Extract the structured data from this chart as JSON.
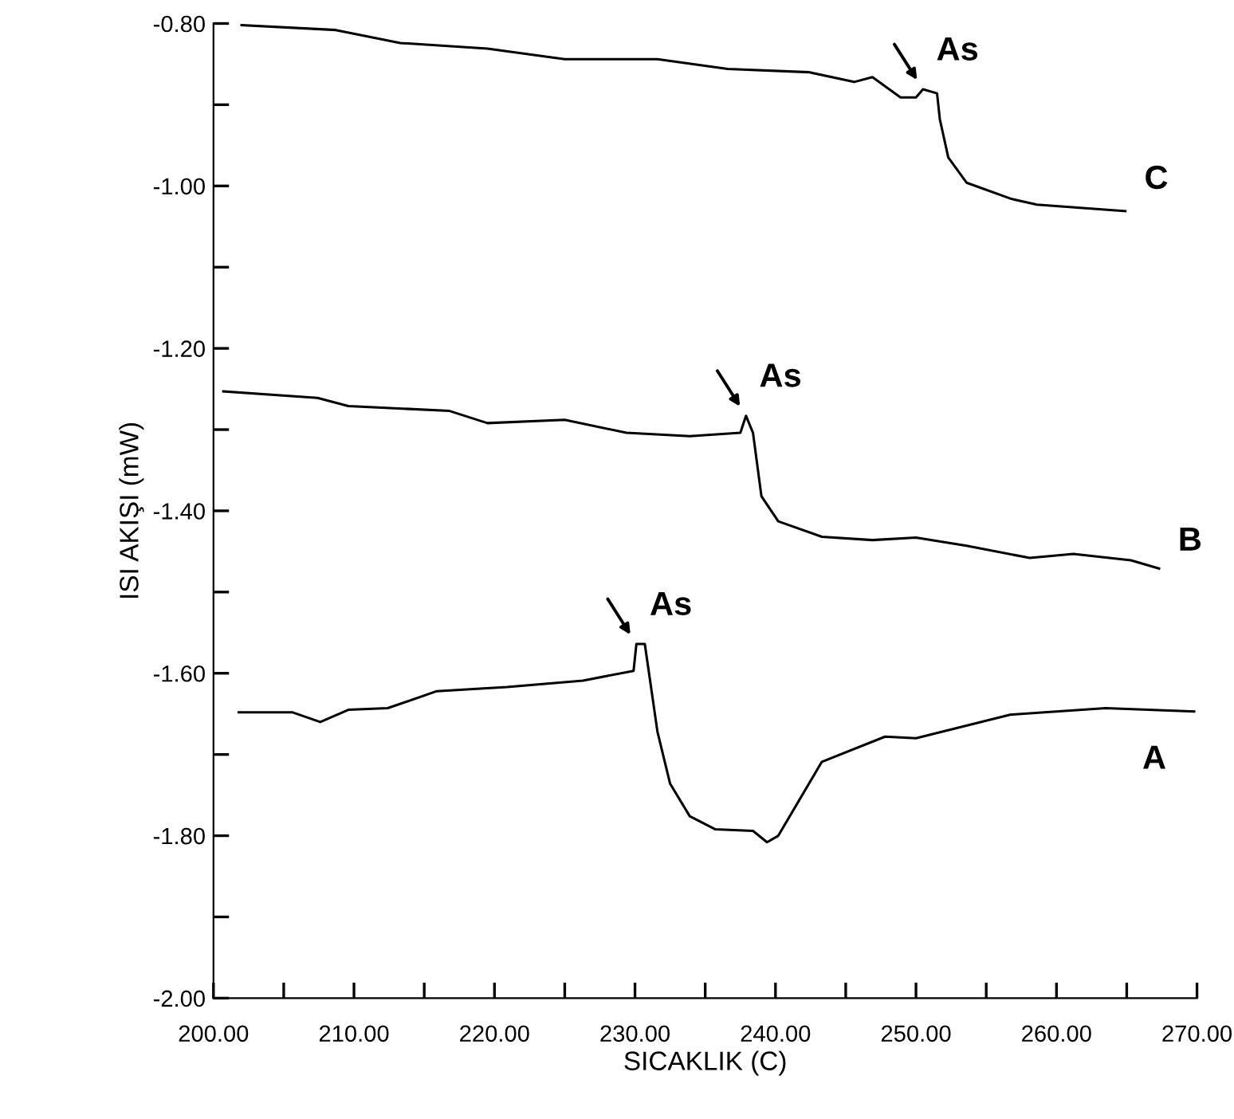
{
  "chart_data": {
    "type": "line",
    "xlabel": "SICAKLIK (C)",
    "ylabel": "ISI AKIŞI (mW)",
    "series": [
      {
        "name": "C",
        "color": "#000000",
        "x": [
          202,
          208.7,
          213.3,
          219.5,
          225,
          231.6,
          236.6,
          242.4,
          245.6,
          246.9,
          248.9,
          250,
          250.5,
          251.5,
          251.7,
          252.3,
          253.6,
          256.8,
          258.6,
          264.9
        ],
        "values": [
          -0.802,
          -0.808,
          -0.824,
          -0.831,
          -0.844,
          -0.844,
          -0.856,
          -0.86,
          -0.872,
          -0.866,
          -0.891,
          -0.891,
          -0.881,
          -0.886,
          -0.918,
          -0.965,
          -0.996,
          -1.016,
          -1.023,
          -1.031
        ]
      },
      {
        "name": "B",
        "color": "#000000",
        "x": [
          200.7,
          207.4,
          209.6,
          216.8,
          219.5,
          225,
          229.4,
          233.9,
          237.5,
          237.9,
          238.4,
          239.0,
          240.2,
          243.3,
          246.9,
          250,
          253.6,
          258.1,
          261.2,
          265.3,
          267.3
        ],
        "values": [
          -1.253,
          -1.261,
          -1.271,
          -1.277,
          -1.292,
          -1.288,
          -1.304,
          -1.308,
          -1.304,
          -1.283,
          -1.304,
          -1.382,
          -1.413,
          -1.432,
          -1.436,
          -1.433,
          -1.443,
          -1.458,
          -1.453,
          -1.461,
          -1.471
        ]
      },
      {
        "name": "A",
        "color": "#000000",
        "x": [
          201.8,
          205.6,
          207.6,
          209.6,
          212.4,
          215.9,
          220.9,
          226.3,
          229.9,
          230.1,
          230.7,
          231.6,
          232.5,
          233.9,
          235.7,
          238.4,
          239.4,
          240.2,
          243.3,
          247.8,
          250,
          256.7,
          263.5,
          269.8
        ],
        "values": [
          -1.648,
          -1.648,
          -1.66,
          -1.645,
          -1.643,
          -1.622,
          -1.617,
          -1.609,
          -1.597,
          -1.564,
          -1.564,
          -1.672,
          -1.736,
          -1.776,
          -1.792,
          -1.794,
          -1.808,
          -1.8,
          -1.709,
          -1.678,
          -1.68,
          -1.651,
          -1.643,
          -1.647
        ]
      }
    ],
    "annotations": [
      {
        "text": "As",
        "x": 250.5,
        "y": -0.881
      },
      {
        "text": "As",
        "x": 237.9,
        "y": -1.283
      },
      {
        "text": "As",
        "x": 230.1,
        "y": -1.564
      }
    ],
    "xlim": [
      200,
      270
    ],
    "ylim": [
      -2.0,
      -0.8
    ],
    "xticks": [
      {
        "value": 200,
        "label": "200.00"
      },
      {
        "value": 205,
        "label": null
      },
      {
        "value": 210,
        "label": "210.00"
      },
      {
        "value": 215,
        "label": null
      },
      {
        "value": 220,
        "label": "220.00"
      },
      {
        "value": 225,
        "label": null
      },
      {
        "value": 230,
        "label": "230.00"
      },
      {
        "value": 235,
        "label": null
      },
      {
        "value": 240,
        "label": "240.00"
      },
      {
        "value": 245,
        "label": null
      },
      {
        "value": 250,
        "label": "250.00"
      },
      {
        "value": 255,
        "label": null
      },
      {
        "value": 260,
        "label": "260.00"
      },
      {
        "value": 265,
        "label": null
      },
      {
        "value": 270,
        "label": "270.00"
      }
    ],
    "yticks": [
      {
        "value": -2.0,
        "label": "-2.00"
      },
      {
        "value": -1.9,
        "label": null
      },
      {
        "value": -1.8,
        "label": "-1.80"
      },
      {
        "value": -1.7,
        "label": null
      },
      {
        "value": -1.6,
        "label": "-1.60"
      },
      {
        "value": -1.5,
        "label": null
      },
      {
        "value": -1.4,
        "label": "-1.40"
      },
      {
        "value": -1.3,
        "label": null
      },
      {
        "value": -1.2,
        "label": "-1.20"
      },
      {
        "value": -1.1,
        "label": null
      },
      {
        "value": -1.0,
        "label": "-1.00"
      },
      {
        "value": -0.9,
        "label": null
      },
      {
        "value": -0.8,
        "label": "-0.80"
      }
    ],
    "grid": false,
    "legend": false
  }
}
